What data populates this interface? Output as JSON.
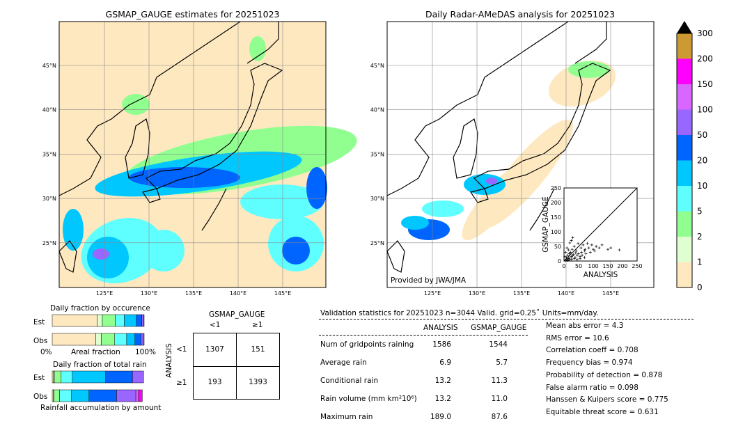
{
  "left_map": {
    "title": "GSMAP_GAUGE estimates for 20251023"
  },
  "right_map": {
    "title": "Daily Radar-AMeDAS analysis for 20251023",
    "credit": "Provided by JWA/JMA"
  },
  "lat_labels": [
    "45°N",
    "40°N",
    "35°N",
    "30°N",
    "25°N"
  ],
  "lon_labels": [
    "125°E",
    "130°E",
    "135°E",
    "140°E",
    "145°E"
  ],
  "colorbar": {
    "labels": [
      "0",
      "1",
      "2",
      "5",
      "10",
      "20",
      "50",
      "100",
      "150",
      "200",
      "300"
    ],
    "colors": [
      "#fee8c0",
      "#e0ffd0",
      "#90ff90",
      "#60ffff",
      "#00c8ff",
      "#0064ff",
      "#9966ff",
      "#d966ff",
      "#ff00ff",
      "#cc9933"
    ],
    "extend_color": "#000000"
  },
  "chart_data": [
    {
      "type": "scatter",
      "title": "",
      "xlabel": "ANALYSIS",
      "ylabel": "GSMAP_GAUGE",
      "xlim": [
        0,
        250
      ],
      "ylim": [
        0,
        250
      ],
      "ticks": [
        "0",
        "50",
        "100",
        "150",
        "200",
        "250"
      ],
      "points": [
        [
          5,
          3
        ],
        [
          8,
          12
        ],
        [
          10,
          5
        ],
        [
          12,
          20
        ],
        [
          15,
          8
        ],
        [
          18,
          25
        ],
        [
          20,
          10
        ],
        [
          22,
          30
        ],
        [
          25,
          15
        ],
        [
          28,
          40
        ],
        [
          30,
          18
        ],
        [
          32,
          22
        ],
        [
          35,
          50
        ],
        [
          38,
          12
        ],
        [
          40,
          28
        ],
        [
          42,
          35
        ],
        [
          45,
          20
        ],
        [
          48,
          60
        ],
        [
          50,
          25
        ],
        [
          55,
          15
        ],
        [
          58,
          45
        ],
        [
          60,
          30
        ],
        [
          62,
          20
        ],
        [
          65,
          55
        ],
        [
          70,
          35
        ],
        [
          72,
          40
        ],
        [
          75,
          25
        ],
        [
          80,
          60
        ],
        [
          85,
          45
        ],
        [
          90,
          30
        ],
        [
          95,
          55
        ],
        [
          100,
          40
        ],
        [
          105,
          35
        ],
        [
          110,
          50
        ],
        [
          120,
          45
        ],
        [
          130,
          55
        ],
        [
          150,
          40
        ],
        [
          160,
          45
        ],
        [
          189,
          38
        ],
        [
          3,
          15
        ],
        [
          6,
          30
        ],
        [
          10,
          45
        ],
        [
          15,
          38
        ],
        [
          20,
          62
        ],
        [
          25,
          70
        ],
        [
          30,
          80
        ],
        [
          12,
          2
        ],
        [
          18,
          4
        ],
        [
          26,
          6
        ],
        [
          35,
          8
        ],
        [
          45,
          5
        ],
        [
          55,
          9
        ],
        [
          70,
          12
        ]
      ]
    },
    {
      "type": "bar",
      "title": "Daily fraction by occurence",
      "xlabel": "Areal fraction",
      "x_min_label": "0%",
      "x_max_label": "100%",
      "series": [
        {
          "name": "Est",
          "values": [
            49,
            5.5,
            14,
            10,
            13,
            6,
            2,
            0.5
          ]
        },
        {
          "name": "Obs",
          "values": [
            47.5,
            6,
            14.5,
            13,
            9,
            6.5,
            2.5,
            1
          ]
        }
      ]
    },
    {
      "type": "bar",
      "title": "Daily fraction of total rain",
      "xlabel": "Rainfall accumulation by amount",
      "series": [
        {
          "name": "Est",
          "values": [
            1,
            1,
            6,
            10,
            30,
            24,
            10,
            0,
            0
          ]
        },
        {
          "name": "Obs",
          "values": [
            1,
            1,
            6,
            13,
            19,
            30,
            21,
            3,
            4
          ]
        }
      ]
    }
  ],
  "contingency": {
    "col_title": "GSMAP_GAUGE",
    "row_title": "ANALYSIS",
    "col_labels": [
      "<1",
      "≥1"
    ],
    "row_labels": [
      "<1",
      "≥1"
    ],
    "cells": [
      [
        "1307",
        "151"
      ],
      [
        "193",
        "1393"
      ]
    ]
  },
  "stats": {
    "header": "Validation statistics for 20251023  n=3044 Valid. grid=0.25˚ Units=mm/day.",
    "col_headers": [
      "ANALYSIS",
      "GSMAP_GAUGE"
    ],
    "rows": [
      {
        "label": "Num of gridpoints raining",
        "a": "1586",
        "g": "1544"
      },
      {
        "label": "Average rain",
        "a": "6.9",
        "g": "5.7"
      },
      {
        "label": "Conditional rain",
        "a": "13.2",
        "g": "11.3"
      },
      {
        "label": "Rain volume (mm km²10⁶)",
        "a": "13.2",
        "g": "11.0"
      },
      {
        "label": "Maximum rain",
        "a": "189.0",
        "g": "87.6"
      }
    ],
    "scores": [
      "Mean abs error =    4.3",
      "RMS error =   10.6",
      "Correlation coeff =  0.708",
      "Frequency bias =  0.974",
      "Probability of detection =  0.878",
      "False alarm ratio =  0.098",
      "Hanssen & Kuipers score =  0.775",
      "Equitable threat score =  0.631"
    ]
  }
}
